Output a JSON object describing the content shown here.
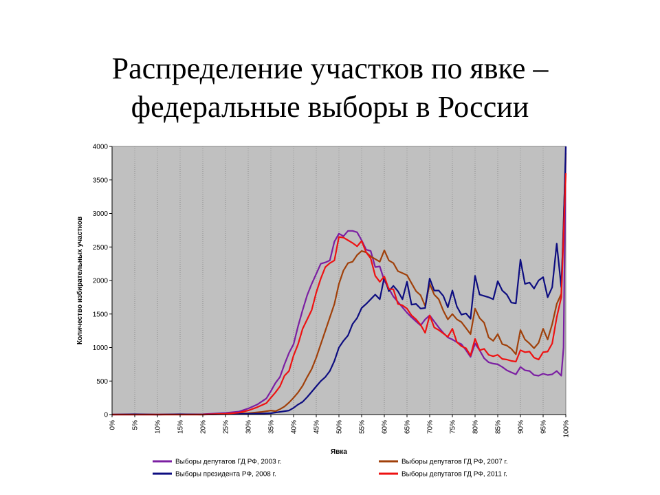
{
  "slide": {
    "title_line1": "Распределение участков по явке –",
    "title_line2": "федеральные выборы в России"
  },
  "chart_data": {
    "type": "line",
    "xlabel": "Явка",
    "ylabel": "Количество избирательных участков",
    "xlim": [
      0,
      100
    ],
    "ylim": [
      0,
      4000
    ],
    "x_ticks": [
      0,
      5,
      10,
      15,
      20,
      25,
      30,
      35,
      40,
      45,
      50,
      55,
      60,
      65,
      70,
      75,
      80,
      85,
      90,
      95,
      100
    ],
    "x_tick_labels": [
      "0%",
      "5%",
      "10%",
      "15%",
      "20%",
      "25%",
      "30%",
      "35%",
      "40%",
      "45%",
      "50%",
      "55%",
      "60%",
      "65%",
      "70%",
      "75%",
      "80%",
      "85%",
      "90%",
      "95%",
      "100%"
    ],
    "y_ticks": [
      0,
      500,
      1000,
      1500,
      2000,
      2500,
      3000,
      3500,
      4000
    ],
    "y_tick_labels": [
      "0",
      "500",
      "1000",
      "1500",
      "2000",
      "2500",
      "3000",
      "3500",
      "4000"
    ],
    "grid": "vertical",
    "plot_background": "#c0c0c0",
    "legend_position": "bottom",
    "series": [
      {
        "name": "Выборы депутатов ГД РФ, 2003 г.",
        "color": "#7b1fa2",
        "points": [
          [
            0,
            0
          ],
          [
            10,
            0
          ],
          [
            20,
            5
          ],
          [
            25,
            25
          ],
          [
            28,
            45
          ],
          [
            30,
            90
          ],
          [
            32,
            150
          ],
          [
            34,
            240
          ],
          [
            35,
            350
          ],
          [
            36,
            470
          ],
          [
            37,
            560
          ],
          [
            38,
            750
          ],
          [
            39,
            920
          ],
          [
            40,
            1050
          ],
          [
            41,
            1320
          ],
          [
            42,
            1560
          ],
          [
            43,
            1780
          ],
          [
            44,
            1950
          ],
          [
            45,
            2100
          ],
          [
            46,
            2250
          ],
          [
            47,
            2270
          ],
          [
            48,
            2300
          ],
          [
            49,
            2580
          ],
          [
            50,
            2700
          ],
          [
            51,
            2660
          ],
          [
            52,
            2740
          ],
          [
            53,
            2740
          ],
          [
            54,
            2720
          ],
          [
            55,
            2600
          ],
          [
            56,
            2460
          ],
          [
            57,
            2440
          ],
          [
            58,
            2200
          ],
          [
            59,
            2210
          ],
          [
            60,
            2000
          ],
          [
            61,
            1880
          ],
          [
            62,
            1760
          ],
          [
            63,
            1680
          ],
          [
            64,
            1600
          ],
          [
            65,
            1520
          ],
          [
            66,
            1450
          ],
          [
            67,
            1390
          ],
          [
            68,
            1330
          ],
          [
            69,
            1420
          ],
          [
            70,
            1480
          ],
          [
            71,
            1390
          ],
          [
            72,
            1300
          ],
          [
            73,
            1220
          ],
          [
            74,
            1150
          ],
          [
            75,
            1120
          ],
          [
            76,
            1080
          ],
          [
            77,
            1050
          ],
          [
            78,
            960
          ],
          [
            79,
            860
          ],
          [
            80,
            1060
          ],
          [
            81,
            960
          ],
          [
            82,
            840
          ],
          [
            83,
            780
          ],
          [
            84,
            760
          ],
          [
            85,
            750
          ],
          [
            86,
            710
          ],
          [
            87,
            660
          ],
          [
            88,
            630
          ],
          [
            89,
            600
          ],
          [
            90,
            710
          ],
          [
            91,
            660
          ],
          [
            92,
            650
          ],
          [
            93,
            590
          ],
          [
            94,
            580
          ],
          [
            95,
            610
          ],
          [
            96,
            590
          ],
          [
            97,
            600
          ],
          [
            98,
            650
          ],
          [
            99,
            580
          ],
          [
            99.5,
            1000
          ],
          [
            100,
            4000
          ]
        ]
      },
      {
        "name": "Выборы депутатов ГД РФ, 2007 г.",
        "color": "#a0400a",
        "points": [
          [
            0,
            0
          ],
          [
            20,
            0
          ],
          [
            25,
            10
          ],
          [
            30,
            20
          ],
          [
            33,
            40
          ],
          [
            35,
            60
          ],
          [
            36,
            50
          ],
          [
            37,
            80
          ],
          [
            38,
            120
          ],
          [
            39,
            180
          ],
          [
            40,
            250
          ],
          [
            41,
            330
          ],
          [
            42,
            430
          ],
          [
            43,
            560
          ],
          [
            44,
            680
          ],
          [
            45,
            850
          ],
          [
            46,
            1050
          ],
          [
            47,
            1250
          ],
          [
            48,
            1450
          ],
          [
            49,
            1650
          ],
          [
            50,
            1950
          ],
          [
            51,
            2150
          ],
          [
            52,
            2260
          ],
          [
            53,
            2280
          ],
          [
            54,
            2380
          ],
          [
            55,
            2440
          ],
          [
            56,
            2420
          ],
          [
            57,
            2360
          ],
          [
            58,
            2320
          ],
          [
            59,
            2280
          ],
          [
            60,
            2450
          ],
          [
            61,
            2300
          ],
          [
            62,
            2260
          ],
          [
            63,
            2140
          ],
          [
            64,
            2110
          ],
          [
            65,
            2080
          ],
          [
            66,
            1960
          ],
          [
            67,
            1840
          ],
          [
            68,
            1780
          ],
          [
            69,
            1620
          ],
          [
            70,
            1950
          ],
          [
            71,
            1790
          ],
          [
            72,
            1720
          ],
          [
            73,
            1550
          ],
          [
            74,
            1420
          ],
          [
            75,
            1500
          ],
          [
            76,
            1420
          ],
          [
            77,
            1380
          ],
          [
            78,
            1290
          ],
          [
            79,
            1200
          ],
          [
            80,
            1580
          ],
          [
            81,
            1440
          ],
          [
            82,
            1370
          ],
          [
            83,
            1150
          ],
          [
            84,
            1100
          ],
          [
            85,
            1200
          ],
          [
            86,
            1050
          ],
          [
            87,
            1030
          ],
          [
            88,
            980
          ],
          [
            89,
            900
          ],
          [
            90,
            1260
          ],
          [
            91,
            1120
          ],
          [
            92,
            1060
          ],
          [
            93,
            990
          ],
          [
            94,
            1070
          ],
          [
            95,
            1280
          ],
          [
            96,
            1120
          ],
          [
            97,
            1350
          ],
          [
            98,
            1650
          ],
          [
            99,
            1800
          ],
          [
            100,
            3900
          ]
        ]
      },
      {
        "name": "Выборы президента РФ, 2008 г.",
        "color": "#0d0d80",
        "points": [
          [
            0,
            0
          ],
          [
            5,
            5
          ],
          [
            10,
            0
          ],
          [
            15,
            5
          ],
          [
            20,
            0
          ],
          [
            25,
            5
          ],
          [
            30,
            10
          ],
          [
            33,
            15
          ],
          [
            35,
            20
          ],
          [
            37,
            40
          ],
          [
            39,
            60
          ],
          [
            40,
            100
          ],
          [
            41,
            150
          ],
          [
            42,
            190
          ],
          [
            43,
            260
          ],
          [
            44,
            340
          ],
          [
            45,
            420
          ],
          [
            46,
            500
          ],
          [
            47,
            560
          ],
          [
            48,
            650
          ],
          [
            49,
            800
          ],
          [
            50,
            1000
          ],
          [
            51,
            1100
          ],
          [
            52,
            1180
          ],
          [
            53,
            1350
          ],
          [
            54,
            1440
          ],
          [
            55,
            1590
          ],
          [
            56,
            1650
          ],
          [
            57,
            1720
          ],
          [
            58,
            1790
          ],
          [
            59,
            1720
          ],
          [
            60,
            2050
          ],
          [
            61,
            1840
          ],
          [
            62,
            1920
          ],
          [
            63,
            1840
          ],
          [
            64,
            1720
          ],
          [
            65,
            1980
          ],
          [
            66,
            1640
          ],
          [
            67,
            1650
          ],
          [
            68,
            1580
          ],
          [
            69,
            1590
          ],
          [
            70,
            2030
          ],
          [
            71,
            1850
          ],
          [
            72,
            1850
          ],
          [
            73,
            1770
          ],
          [
            74,
            1600
          ],
          [
            75,
            1850
          ],
          [
            76,
            1610
          ],
          [
            77,
            1490
          ],
          [
            78,
            1510
          ],
          [
            79,
            1430
          ],
          [
            80,
            2070
          ],
          [
            81,
            1790
          ],
          [
            82,
            1770
          ],
          [
            83,
            1750
          ],
          [
            84,
            1720
          ],
          [
            85,
            1990
          ],
          [
            86,
            1850
          ],
          [
            87,
            1790
          ],
          [
            88,
            1670
          ],
          [
            89,
            1660
          ],
          [
            90,
            2310
          ],
          [
            91,
            1950
          ],
          [
            92,
            1970
          ],
          [
            93,
            1880
          ],
          [
            94,
            2000
          ],
          [
            95,
            2050
          ],
          [
            96,
            1750
          ],
          [
            97,
            1900
          ],
          [
            98,
            2550
          ],
          [
            99,
            1900
          ],
          [
            99.5,
            2800
          ],
          [
            100,
            4000
          ]
        ]
      },
      {
        "name": "Выборы депутатов ГД РФ, 2011 г.",
        "color": "#ee1111",
        "points": [
          [
            0,
            0
          ],
          [
            10,
            0
          ],
          [
            20,
            0
          ],
          [
            25,
            10
          ],
          [
            28,
            30
          ],
          [
            30,
            60
          ],
          [
            32,
            110
          ],
          [
            34,
            170
          ],
          [
            35,
            250
          ],
          [
            36,
            330
          ],
          [
            37,
            420
          ],
          [
            38,
            580
          ],
          [
            39,
            650
          ],
          [
            40,
            880
          ],
          [
            41,
            1050
          ],
          [
            42,
            1280
          ],
          [
            43,
            1420
          ],
          [
            44,
            1560
          ],
          [
            45,
            1820
          ],
          [
            46,
            2030
          ],
          [
            47,
            2200
          ],
          [
            48,
            2260
          ],
          [
            49,
            2300
          ],
          [
            50,
            2650
          ],
          [
            51,
            2640
          ],
          [
            52,
            2600
          ],
          [
            53,
            2560
          ],
          [
            54,
            2510
          ],
          [
            55,
            2590
          ],
          [
            56,
            2420
          ],
          [
            57,
            2330
          ],
          [
            58,
            2070
          ],
          [
            59,
            1980
          ],
          [
            60,
            2060
          ],
          [
            61,
            1870
          ],
          [
            62,
            1870
          ],
          [
            63,
            1650
          ],
          [
            64,
            1630
          ],
          [
            65,
            1580
          ],
          [
            66,
            1480
          ],
          [
            67,
            1420
          ],
          [
            68,
            1340
          ],
          [
            69,
            1220
          ],
          [
            70,
            1480
          ],
          [
            71,
            1300
          ],
          [
            72,
            1260
          ],
          [
            73,
            1210
          ],
          [
            74,
            1160
          ],
          [
            75,
            1280
          ],
          [
            76,
            1080
          ],
          [
            77,
            1020
          ],
          [
            78,
            990
          ],
          [
            79,
            880
          ],
          [
            80,
            1130
          ],
          [
            81,
            960
          ],
          [
            82,
            980
          ],
          [
            83,
            890
          ],
          [
            84,
            870
          ],
          [
            85,
            890
          ],
          [
            86,
            830
          ],
          [
            87,
            820
          ],
          [
            88,
            800
          ],
          [
            89,
            790
          ],
          [
            90,
            960
          ],
          [
            91,
            930
          ],
          [
            92,
            940
          ],
          [
            93,
            850
          ],
          [
            94,
            820
          ],
          [
            95,
            930
          ],
          [
            96,
            940
          ],
          [
            97,
            1060
          ],
          [
            98,
            1450
          ],
          [
            99,
            1750
          ],
          [
            100,
            3600
          ]
        ]
      }
    ]
  }
}
